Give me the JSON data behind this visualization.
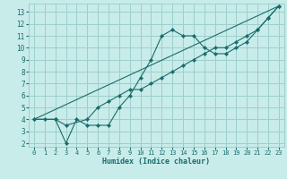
{
  "xlabel": "Humidex (Indice chaleur)",
  "xlim": [
    -0.5,
    23.5
  ],
  "ylim": [
    1.7,
    13.7
  ],
  "xticks": [
    0,
    1,
    2,
    3,
    4,
    5,
    6,
    7,
    8,
    9,
    10,
    11,
    12,
    13,
    14,
    15,
    16,
    17,
    18,
    19,
    20,
    21,
    22,
    23
  ],
  "yticks": [
    2,
    3,
    4,
    5,
    6,
    7,
    8,
    9,
    10,
    11,
    12,
    13
  ],
  "bg_color": "#c8ecea",
  "grid_color": "#9dcfcc",
  "line_color": "#1a6b6b",
  "line1_x": [
    0,
    1,
    2,
    3,
    4,
    5,
    6,
    7,
    8,
    9,
    10,
    11,
    12,
    13,
    14,
    15,
    16,
    17,
    18,
    19,
    20,
    21,
    22,
    23
  ],
  "line1_y": [
    4.0,
    4.0,
    4.0,
    2.0,
    4.0,
    3.5,
    3.5,
    3.5,
    5.0,
    6.0,
    7.5,
    9.0,
    11.0,
    11.5,
    11.0,
    11.0,
    10.0,
    9.5,
    9.5,
    10.0,
    10.5,
    11.5,
    12.5,
    13.5
  ],
  "line2_x": [
    0,
    2,
    3,
    5,
    6,
    7,
    8,
    9,
    10,
    11,
    12,
    13,
    14,
    15,
    16,
    17,
    18,
    19,
    20,
    21,
    22,
    23
  ],
  "line2_y": [
    4.0,
    4.0,
    3.5,
    4.0,
    5.0,
    5.5,
    6.0,
    6.5,
    6.5,
    7.0,
    7.5,
    8.0,
    8.5,
    9.0,
    9.5,
    10.0,
    10.0,
    10.5,
    11.0,
    11.5,
    12.5,
    13.5
  ],
  "line3_x": [
    0,
    23
  ],
  "line3_y": [
    4.0,
    13.5
  ]
}
